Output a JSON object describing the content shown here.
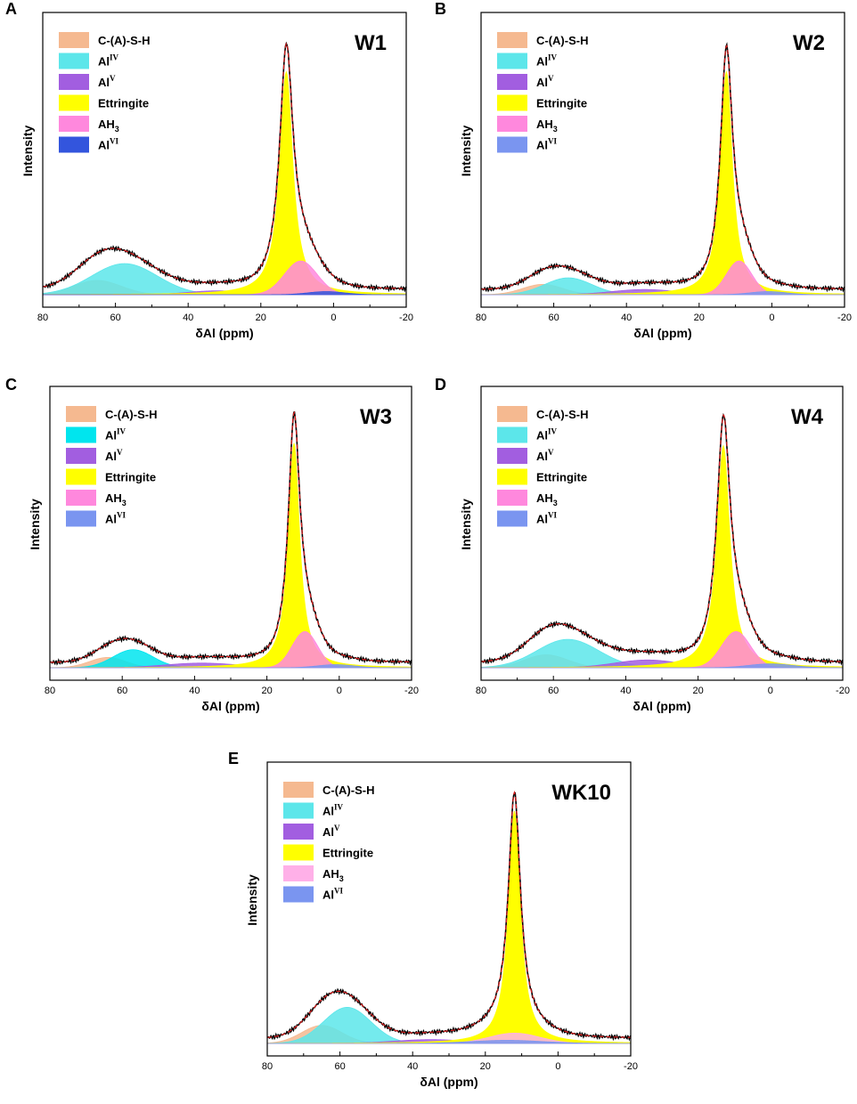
{
  "chart_data": [
    {
      "panel": "A",
      "title": "W1",
      "type": "line",
      "xlabel": "δAl (ppm)",
      "ylabel": "Intensity",
      "xlim": [
        80,
        -20
      ],
      "xticks": [
        80,
        60,
        40,
        20,
        0,
        -20
      ],
      "components": [
        {
          "name": "C-(A)-S-H",
          "center": 65,
          "width": 6.5,
          "height": 0.055,
          "color": "#f5b990"
        },
        {
          "name": "Al^IV",
          "center": 57.5,
          "width": 9.0,
          "height": 0.12,
          "color": "#5ce6ea"
        },
        {
          "name": "Al^V",
          "center": 32,
          "width": 8.0,
          "height": 0.015,
          "color": "#a25ee0"
        },
        {
          "name": "Ettringite",
          "center": 13,
          "width": 2.2,
          "height": 0.86,
          "color": "#ffff00"
        },
        {
          "name": "AH_3",
          "center": 9,
          "width": 4.5,
          "height": 0.13,
          "color": "#ff88dd"
        },
        {
          "name": "Al^VI",
          "center": 2,
          "width": 5.0,
          "height": 0.012,
          "color": "#3355dd"
        }
      ]
    },
    {
      "panel": "B",
      "title": "W2",
      "type": "line",
      "xlabel": "δAl (ppm)",
      "ylabel": "Intensity",
      "xlim": [
        80,
        -20
      ],
      "xticks": [
        80,
        60,
        40,
        20,
        0,
        -20
      ],
      "components": [
        {
          "name": "C-(A)-S-H",
          "center": 63,
          "width": 5.5,
          "height": 0.04,
          "color": "#f5b990"
        },
        {
          "name": "Al^IV",
          "center": 56,
          "width": 6.5,
          "height": 0.065,
          "color": "#5ce6ea"
        },
        {
          "name": "Al^V",
          "center": 35,
          "width": 9.0,
          "height": 0.02,
          "color": "#a25ee0"
        },
        {
          "name": "Ettringite",
          "center": 12.5,
          "width": 2.0,
          "height": 0.86,
          "color": "#ffff00"
        },
        {
          "name": "AH_3",
          "center": 9,
          "width": 3.5,
          "height": 0.13,
          "color": "#ff88dd"
        },
        {
          "name": "Al^VI",
          "center": 1,
          "width": 5.0,
          "height": 0.012,
          "color": "#7a95f0"
        }
      ]
    },
    {
      "panel": "C",
      "title": "W3",
      "type": "line",
      "xlabel": "δAl (ppm)",
      "ylabel": "Intensity",
      "xlim": [
        80,
        -20
      ],
      "xticks": [
        80,
        60,
        40,
        20,
        0,
        -20
      ],
      "components": [
        {
          "name": "C-(A)-S-H",
          "center": 64,
          "width": 5.0,
          "height": 0.04,
          "color": "#f5b990"
        },
        {
          "name": "Al^IV",
          "center": 57,
          "width": 5.5,
          "height": 0.07,
          "color": "#00e5ee"
        },
        {
          "name": "Al^V",
          "center": 38,
          "width": 10.0,
          "height": 0.018,
          "color": "#a25ee0"
        },
        {
          "name": "Ettringite",
          "center": 12.5,
          "width": 1.9,
          "height": 0.87,
          "color": "#ffff00"
        },
        {
          "name": "AH_3",
          "center": 9.5,
          "width": 3.5,
          "height": 0.14,
          "color": "#ff88dd"
        },
        {
          "name": "Al^VI",
          "center": 1,
          "width": 5.0,
          "height": 0.012,
          "color": "#7a95f0"
        }
      ]
    },
    {
      "panel": "D",
      "title": "W4",
      "type": "line",
      "xlabel": "δAl (ppm)",
      "ylabel": "Intensity",
      "xlim": [
        80,
        -20
      ],
      "xticks": [
        80,
        60,
        40,
        20,
        0,
        -20
      ],
      "components": [
        {
          "name": "C-(A)-S-H",
          "center": 62,
          "width": 6.0,
          "height": 0.05,
          "color": "#f5b990"
        },
        {
          "name": "Al^IV",
          "center": 56,
          "width": 8.5,
          "height": 0.11,
          "color": "#5ce6ea"
        },
        {
          "name": "Al^V",
          "center": 34,
          "width": 9.0,
          "height": 0.03,
          "color": "#a25ee0"
        },
        {
          "name": "Ettringite",
          "center": 13,
          "width": 2.2,
          "height": 0.86,
          "color": "#ffff00"
        },
        {
          "name": "AH_3",
          "center": 9.5,
          "width": 4.0,
          "height": 0.14,
          "color": "#ff88dd"
        },
        {
          "name": "Al^VI",
          "center": 0,
          "width": 6.0,
          "height": 0.015,
          "color": "#7a95f0"
        }
      ]
    },
    {
      "panel": "E",
      "title": "WK10",
      "type": "line",
      "xlabel": "δAl (ppm)",
      "ylabel": "Intensity",
      "xlim": [
        80,
        -20
      ],
      "xticks": [
        80,
        60,
        40,
        20,
        0,
        -20
      ],
      "components": [
        {
          "name": "C-(A)-S-H",
          "center": 65,
          "width": 5.5,
          "height": 0.07,
          "color": "#f5b990"
        },
        {
          "name": "Al^IV",
          "center": 58,
          "width": 6.5,
          "height": 0.14,
          "color": "#5ce6ea"
        },
        {
          "name": "Al^V",
          "center": 35,
          "width": 10.0,
          "height": 0.015,
          "color": "#a25ee0"
        },
        {
          "name": "Ettringite",
          "center": 12,
          "width": 2.0,
          "height": 0.9,
          "color": "#ffff00"
        },
        {
          "name": "AH_3",
          "center": 12,
          "width": 7.0,
          "height": 0.04,
          "color": "#ffb0e8"
        },
        {
          "name": "Al^VI",
          "center": 14,
          "width": 10.0,
          "height": 0.012,
          "color": "#7a95f0"
        }
      ]
    }
  ]
}
